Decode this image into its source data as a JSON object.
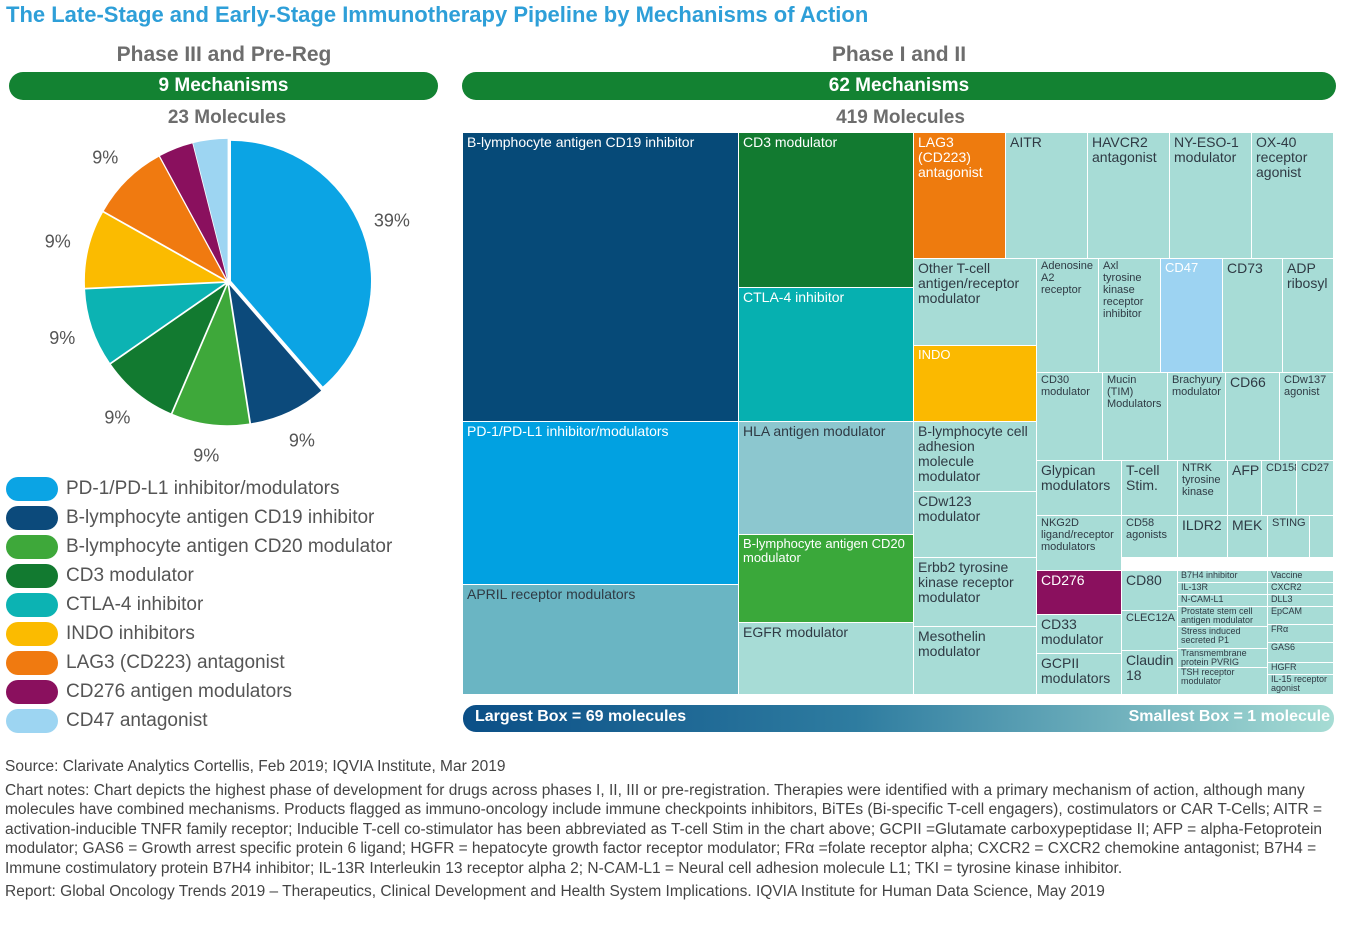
{
  "title": "The Late-Stage and Early-Stage Immunotherapy Pipeline by Mechanisms of Action",
  "left_panel": {
    "heading": "Phase III and Pre-Reg",
    "mechanisms": "9 Mechanisms",
    "molecules": "23 Molecules"
  },
  "right_panel": {
    "heading": "Phase I and II",
    "mechanisms": "62 Mechanisms",
    "molecules": "419 Molecules"
  },
  "scale": {
    "largest": "Largest Box = 69 molecules",
    "smallest": "Smallest Box = 1 molecule"
  },
  "notes": {
    "source": "Source: Clarivate Analytics Cortellis, Feb 2019; IQVIA Institute, Mar 2019",
    "chart_notes": "Chart notes: Chart depicts the highest phase of development for drugs across phases I, II, III or pre-registration. Therapies were identified with a primary mechanism of action, although many molecules have combined mechanisms. Products flagged as immuno-oncology include immune checkpoints inhibitors, BiTEs (Bi-specific T-cell engagers), costimulators or CAR T-Cells; AITR = activation-inducible TNFR family receptor; Inducible T-cell co-stimulator has been abbreviated as T-cell Stim in the chart above; GCPII =Glutamate carboxypeptidase II; AFP = alpha-Fetoprotein modulator; GAS6 = Growth arrest specific protein 6 ligand; HGFR = hepatocyte growth factor receptor modulator; FRα =folate receptor alpha; CXCR2 = CXCR2 chemokine antagonist; B7H4 = Immune costimulatory protein B7H4 inhibitor; IL-13R Interleukin 13 receptor alpha 2; N-CAM-L1 = Neural cell adhesion molecule L1; TKI = tyrosine kinase inhibitor.",
    "report": "Report: Global Oncology Trends 2019 – Therapeutics, Clinical Development and Health System Implications. IQVIA Institute for Human Data Science, May 2019"
  },
  "chart_data": [
    {
      "type": "pie",
      "title": "Phase III and Pre-Reg",
      "labels": [
        "PD-1/PD-L1 inhibitor/modulators",
        "B-lymphocyte antigen CD19 inhibitor",
        "B-lymphocyte antigen CD20 modulator",
        "CD3 modulator",
        "CTLA-4 inhibitor",
        "INDO inhibitors",
        "LAG3 (CD223) antagonist",
        "CD276 antigen modulators",
        "CD47 antagonist"
      ],
      "values": [
        39,
        9,
        9,
        9,
        9,
        9,
        9,
        4,
        4
      ],
      "value_labels": [
        "39%",
        "9%",
        "9%",
        "9%",
        "9%",
        "9%",
        "9%",
        "4%",
        "4%"
      ],
      "colors": [
        "#0ba4e4",
        "#0c4a7b",
        "#3ea83a",
        "#127a30",
        "#0cb3b3",
        "#fbbb00",
        "#f07a10",
        "#8a105e",
        "#9dd5f2"
      ]
    },
    {
      "type": "treemap",
      "title": "Phase I and II",
      "cells": [
        {
          "label": "B-lymphocyte antigen CD19 inhibitor",
          "color": "#064a78",
          "text_color": "#ffffff"
        },
        {
          "label": "PD-1/PD-L1 inhibitor/modulators",
          "color": "#01a1e1",
          "text_color": "#ffffff"
        },
        {
          "label": "APRIL receptor modulators",
          "color": "#6ab5c3",
          "text_color": "#2f3a44"
        },
        {
          "label": "CD3 modulator",
          "color": "#127a30",
          "text_color": "#ffffff"
        },
        {
          "label": "CTLA-4 inhibitor",
          "color": "#06b0b0",
          "text_color": "#ffffff"
        },
        {
          "label": "HLA antigen modulator",
          "color": "#8cc7cf",
          "text_color": "#2f3a44"
        },
        {
          "label": "B-lymphocyte antigen CD20 modulator",
          "color": "#3aa83a",
          "text_color": "#ffffff"
        },
        {
          "label": "EGFR modulator",
          "color": "#a7dcd6",
          "text_color": "#2f3a44"
        },
        {
          "label": "LAG3 (CD223) antagonist",
          "color": "#ee7b0e",
          "text_color": "#ffffff"
        },
        {
          "label": "AITR",
          "color": "#a7dcd6",
          "text_color": "#2f3a44"
        },
        {
          "label": "HAVCR2 antagonist",
          "color": "#a7dcd6",
          "text_color": "#2f3a44"
        },
        {
          "label": "NY-ESO-1 modulator",
          "color": "#a7dcd6",
          "text_color": "#2f3a44"
        },
        {
          "label": "OX-40 receptor agonist",
          "color": "#a7dcd6",
          "text_color": "#2f3a44"
        },
        {
          "label": "Other T-cell antigen/receptor modulator",
          "color": "#a7dcd6",
          "text_color": "#2f3a44"
        },
        {
          "label": "INDO",
          "color": "#fbb900",
          "text_color": "#ffffff"
        },
        {
          "label": "B-lymphocyte cell adhesion molecule modulator",
          "color": "#a7dcd6",
          "text_color": "#2f3a44"
        },
        {
          "label": "CDw123 modulator",
          "color": "#a7dcd6",
          "text_color": "#2f3a44"
        },
        {
          "label": "Erbb2 tyrosine kinase receptor modulator",
          "color": "#a7dcd6",
          "text_color": "#2f3a44"
        },
        {
          "label": "Mesothelin modulator",
          "color": "#a7dcd6",
          "text_color": "#2f3a44"
        },
        {
          "label": "Adenosine A2 receptor",
          "color": "#a7dcd6",
          "text_color": "#2f3a44"
        },
        {
          "label": "Axl tyrosine kinase receptor inhibitor",
          "color": "#a7dcd6",
          "text_color": "#2f3a44"
        },
        {
          "label": "CD47",
          "color": "#9dd3f2",
          "text_color": "#ffffff"
        },
        {
          "label": "CD73",
          "color": "#a7dcd6",
          "text_color": "#2f3a44"
        },
        {
          "label": "ADP ribosyl",
          "color": "#a7dcd6",
          "text_color": "#2f3a44"
        },
        {
          "label": "CD30 modulator",
          "color": "#a7dcd6",
          "text_color": "#2f3a44"
        },
        {
          "label": "Mucin (TIM) Modulators",
          "color": "#a7dcd6",
          "text_color": "#2f3a44"
        },
        {
          "label": "Brachyury modulator",
          "color": "#a7dcd6",
          "text_color": "#2f3a44"
        },
        {
          "label": "CD66",
          "color": "#a7dcd6",
          "text_color": "#2f3a44"
        },
        {
          "label": "CDw137 agonist",
          "color": "#a7dcd6",
          "text_color": "#2f3a44"
        },
        {
          "label": "Glypican modulators",
          "color": "#a7dcd6",
          "text_color": "#2f3a44"
        },
        {
          "label": "T-cell Stim.",
          "color": "#a7dcd6",
          "text_color": "#2f3a44"
        },
        {
          "label": "NTRK tyrosine kinase",
          "color": "#a7dcd6",
          "text_color": "#2f3a44"
        },
        {
          "label": "AFP",
          "color": "#a7dcd6",
          "text_color": "#2f3a44"
        },
        {
          "label": "CD158",
          "color": "#a7dcd6",
          "text_color": "#2f3a44"
        },
        {
          "label": "CD27",
          "color": "#a7dcd6",
          "text_color": "#2f3a44"
        },
        {
          "label": "NKG2D ligand/receptor modulators",
          "color": "#a7dcd6",
          "text_color": "#2f3a44"
        },
        {
          "label": "CD58 agonists",
          "color": "#a7dcd6",
          "text_color": "#2f3a44"
        },
        {
          "label": "ILDR2",
          "color": "#a7dcd6",
          "text_color": "#2f3a44"
        },
        {
          "label": "MEK",
          "color": "#a7dcd6",
          "text_color": "#2f3a44"
        },
        {
          "label": "STING",
          "color": "#a7dcd6",
          "text_color": "#2f3a44"
        },
        {
          "label": "",
          "color": "#a7dcd6",
          "text_color": "#2f3a44"
        },
        {
          "label": "CD276",
          "color": "#8a105e",
          "text_color": "#ffffff"
        },
        {
          "label": "CD33 modulator",
          "color": "#a7dcd6",
          "text_color": "#2f3a44"
        },
        {
          "label": "GCPII modulators",
          "color": "#a7dcd6",
          "text_color": "#2f3a44"
        },
        {
          "label": "CD80",
          "color": "#a7dcd6",
          "text_color": "#2f3a44"
        },
        {
          "label": "CLEC12A",
          "color": "#a7dcd6",
          "text_color": "#2f3a44"
        },
        {
          "label": "Claudin 18",
          "color": "#a7dcd6",
          "text_color": "#2f3a44"
        },
        {
          "label": "B7H4 inhibitor",
          "color": "#a7dcd6",
          "text_color": "#2f3a44"
        },
        {
          "label": "IL-13R",
          "color": "#a7dcd6",
          "text_color": "#2f3a44"
        },
        {
          "label": "N-CAM-L1",
          "color": "#a7dcd6",
          "text_color": "#2f3a44"
        },
        {
          "label": "Prostate stem cell antigen modulator",
          "color": "#a7dcd6",
          "text_color": "#2f3a44"
        },
        {
          "label": "Stress induced secreted P1",
          "color": "#a7dcd6",
          "text_color": "#2f3a44"
        },
        {
          "label": "Transmembrane protein PVRIG",
          "color": "#a7dcd6",
          "text_color": "#2f3a44"
        },
        {
          "label": "TSH receptor modulator",
          "color": "#a7dcd6",
          "text_color": "#2f3a44"
        },
        {
          "label": "Vaccine",
          "color": "#a7dcd6",
          "text_color": "#2f3a44"
        },
        {
          "label": "CXCR2",
          "color": "#a7dcd6",
          "text_color": "#2f3a44"
        },
        {
          "label": "DLL3",
          "color": "#a7dcd6",
          "text_color": "#2f3a44"
        },
        {
          "label": "EpCAM",
          "color": "#a7dcd6",
          "text_color": "#2f3a44"
        },
        {
          "label": "FRα",
          "color": "#a7dcd6",
          "text_color": "#2f3a44"
        },
        {
          "label": "GAS6",
          "color": "#a7dcd6",
          "text_color": "#2f3a44"
        },
        {
          "label": "HGFR",
          "color": "#a7dcd6",
          "text_color": "#2f3a44"
        },
        {
          "label": "IL-15 receptor agonist",
          "color": "#a7dcd6",
          "text_color": "#2f3a44"
        }
      ]
    }
  ]
}
